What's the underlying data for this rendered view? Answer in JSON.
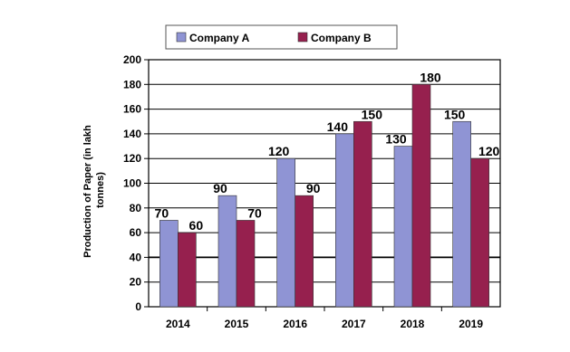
{
  "chart_data": {
    "type": "bar",
    "categories": [
      "2014",
      "2015",
      "2016",
      "2017",
      "2018",
      "2019"
    ],
    "series": [
      {
        "name": "Company A",
        "color": "#8f94d4",
        "values": [
          70,
          90,
          120,
          140,
          130,
          150
        ]
      },
      {
        "name": "Company B",
        "color": "#96204e",
        "values": [
          60,
          70,
          90,
          150,
          180,
          120
        ]
      }
    ],
    "ylabel_lines": [
      "Production of Paper (in lakh",
      "tonnes)"
    ],
    "xlabel": "",
    "ylim": [
      0,
      200
    ],
    "yticks": [
      0,
      20,
      40,
      60,
      80,
      100,
      120,
      140,
      160,
      180,
      200
    ],
    "grid": true,
    "legend_position": "top"
  }
}
